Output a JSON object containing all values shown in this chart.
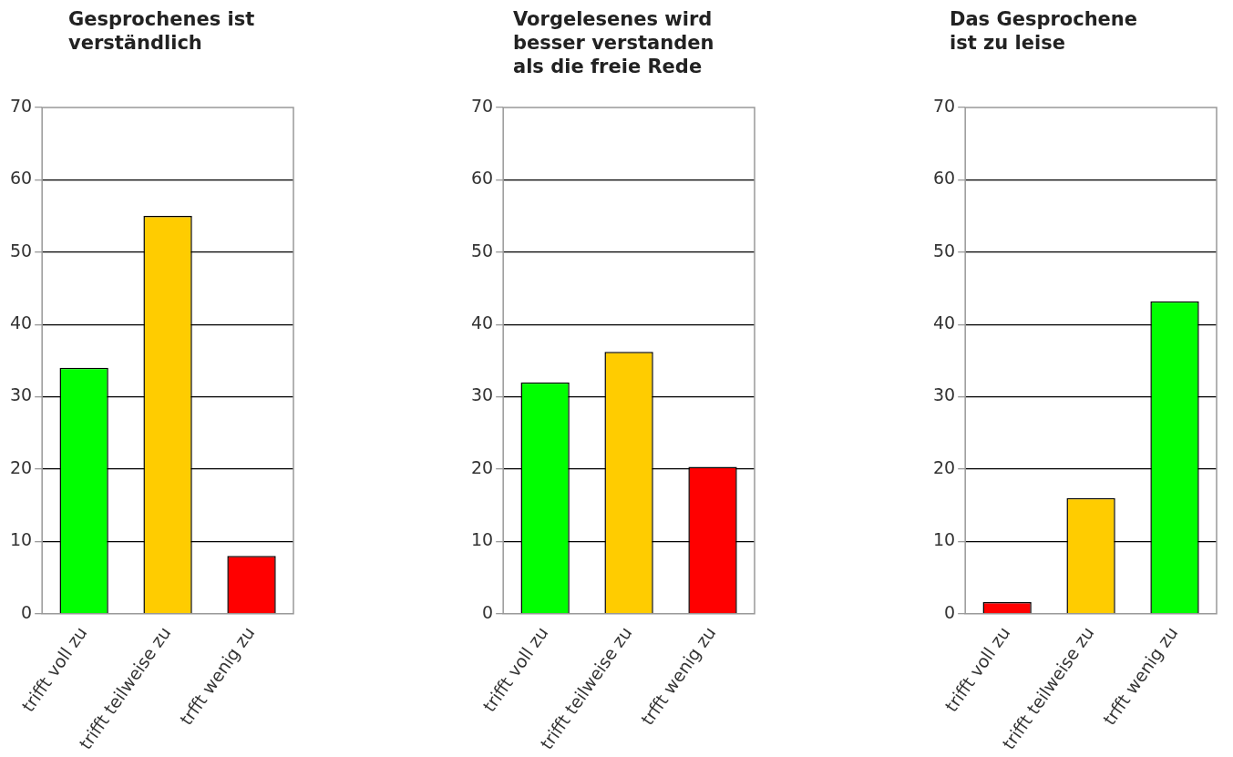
{
  "chart_data": [
    {
      "type": "bar",
      "title": "Gesprochenes ist\nverständlich",
      "categories": [
        "trifft voll zu",
        "trifft teilweise zu",
        "trfft wenig zu"
      ],
      "values": [
        34,
        55,
        8
      ],
      "colors": [
        "#00ff00",
        "#ffcc00",
        "#ff0000"
      ],
      "ylim": [
        0,
        70
      ],
      "yticks": [
        0,
        10,
        20,
        30,
        40,
        50,
        60,
        70
      ],
      "grid": "y"
    },
    {
      "type": "bar",
      "title": "Vorgelesenes wird\nbesser verstanden\nals die freie Rede",
      "categories": [
        "trifft voll zu",
        "trifft teilweise zu",
        "trfft wenig zu"
      ],
      "values": [
        32,
        36.2,
        20.3
      ],
      "colors": [
        "#00ff00",
        "#ffcc00",
        "#ff0000"
      ],
      "ylim": [
        0,
        70
      ],
      "yticks": [
        0,
        10,
        20,
        30,
        40,
        50,
        60,
        70
      ],
      "grid": "y"
    },
    {
      "type": "bar",
      "title": "Das Gesprochene\nist zu leise",
      "categories": [
        "trifft voll zu",
        "trifft teilweise zu",
        "trfft wenig zu"
      ],
      "values": [
        1.6,
        16,
        43.2
      ],
      "colors": [
        "#ff0000",
        "#ffcc00",
        "#00ff00"
      ],
      "ylim": [
        0,
        70
      ],
      "yticks": [
        0,
        10,
        20,
        30,
        40,
        50,
        60,
        70
      ],
      "grid": "y"
    }
  ]
}
